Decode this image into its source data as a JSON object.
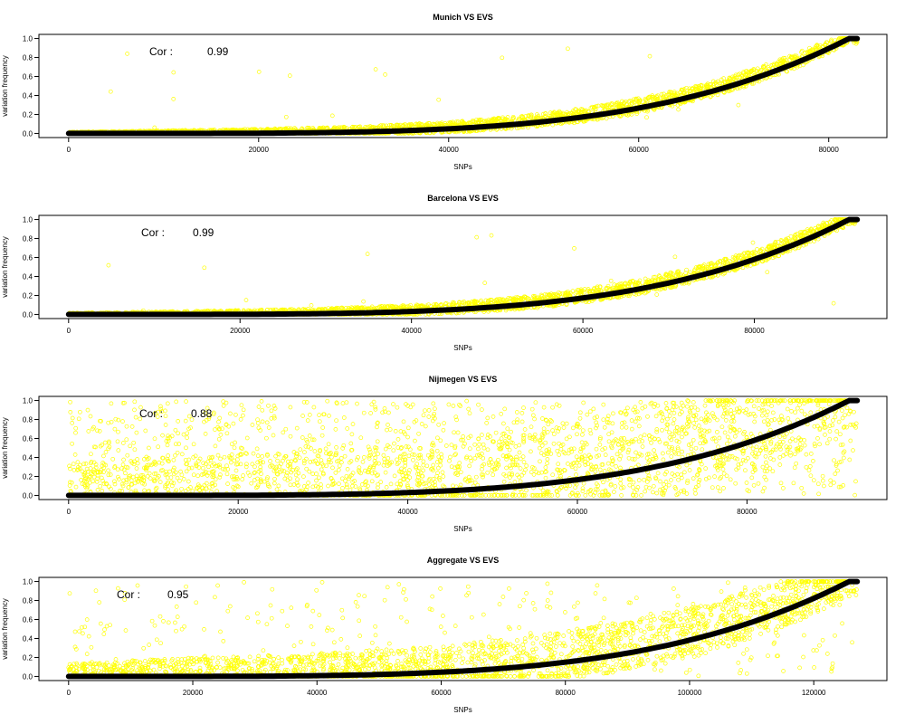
{
  "figure": {
    "ylabel": "variation frequency",
    "xlabel": "SNPs",
    "colors": {
      "points": "#ffff00",
      "curve": "#000000",
      "frame": "#000000"
    }
  },
  "chart_data": [
    {
      "type": "scatter",
      "title": "Munich VS EVS",
      "xlabel": "SNPs",
      "ylabel": "variation frequency",
      "xlim": [
        0,
        83000
      ],
      "ylim": [
        0,
        1
      ],
      "xticks": [
        0,
        20000,
        40000,
        60000,
        80000
      ],
      "yticks": [
        0.0,
        0.2,
        0.4,
        0.6,
        0.8,
        1.0
      ],
      "annotation": {
        "label": "Cor :",
        "value": "0.99"
      },
      "n_snps": 83000,
      "scatter_width": 0.08,
      "scatter_floor": 0,
      "outlier_density": 0.005,
      "grid": false
    },
    {
      "type": "scatter",
      "title": "Barcelona VS EVS",
      "xlabel": "SNPs",
      "ylabel": "variation frequency",
      "xlim": [
        0,
        92000
      ],
      "ylim": [
        0,
        1
      ],
      "xticks": [
        0,
        20000,
        40000,
        60000,
        80000
      ],
      "yticks": [
        0.0,
        0.2,
        0.4,
        0.6,
        0.8,
        1.0
      ],
      "annotation": {
        "label": "Cor :",
        "value": "0.99"
      },
      "n_snps": 92000,
      "scatter_width": 0.08,
      "scatter_floor": 0,
      "outlier_density": 0.005,
      "grid": false
    },
    {
      "type": "scatter",
      "title": "Nijmegen VS EVS",
      "xlabel": "SNPs",
      "ylabel": "variation frequency",
      "xlim": [
        0,
        93000
      ],
      "ylim": [
        0,
        1
      ],
      "xticks": [
        0,
        20000,
        40000,
        60000,
        80000
      ],
      "yticks": [
        0.0,
        0.2,
        0.4,
        0.6,
        0.8,
        1.0
      ],
      "annotation": {
        "label": "Cor :",
        "value": "0.88"
      },
      "n_snps": 93000,
      "scatter_width": 0.45,
      "scatter_floor": 0.4,
      "outlier_density": 0.35,
      "grid": false
    },
    {
      "type": "scatter",
      "title": "Aggregate VS EVS",
      "xlabel": "SNPs",
      "ylabel": "variation frequency",
      "xlim": [
        0,
        127000
      ],
      "ylim": [
        0,
        1
      ],
      "xticks": [
        0,
        20000,
        40000,
        60000,
        80000,
        100000,
        120000
      ],
      "yticks": [
        0.0,
        0.2,
        0.4,
        0.6,
        0.8,
        1.0
      ],
      "annotation": {
        "label": "Cor :",
        "value": "0.95"
      },
      "n_snps": 127000,
      "scatter_width": 0.25,
      "scatter_floor": 0.15,
      "outlier_density": 0.12,
      "grid": false
    }
  ]
}
